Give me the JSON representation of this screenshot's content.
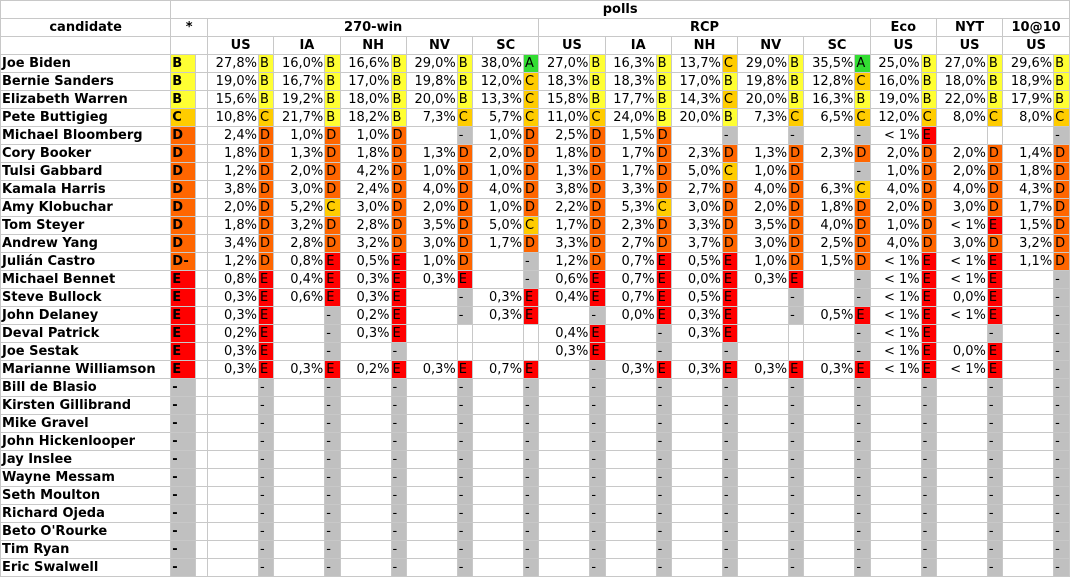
{
  "header": {
    "candidate_label": "candidate",
    "star_label": "*",
    "polls_label": "polls",
    "groups": [
      {
        "label": "270-win",
        "regions": [
          "US",
          "IA",
          "NH",
          "NV",
          "SC"
        ]
      },
      {
        "label": "RCP",
        "regions": [
          "US",
          "IA",
          "NH",
          "NV",
          "SC"
        ]
      },
      {
        "label": "Eco",
        "regions": [
          "US"
        ]
      },
      {
        "label": "NYT",
        "regions": [
          "US"
        ]
      },
      {
        "label": "10@10",
        "regions": [
          "US"
        ]
      }
    ]
  },
  "colors": {
    "A": "#33dd33",
    "B": "#ffff33",
    "C": "#ffcc00",
    "D": "#ff6600",
    "E": "#ff0000",
    "dash": "#c0c0c0"
  },
  "rows": [
    {
      "name": "Joe Biden",
      "grade": "B",
      "polls": [
        [
          "27,8%",
          "B"
        ],
        [
          "16,0%",
          "B"
        ],
        [
          "16,6%",
          "B"
        ],
        [
          "29,0%",
          "B"
        ],
        [
          "38,0%",
          "A"
        ],
        [
          "27,0%",
          "B"
        ],
        [
          "16,3%",
          "B"
        ],
        [
          "13,7%",
          "C"
        ],
        [
          "29,0%",
          "B"
        ],
        [
          "35,5%",
          "A"
        ],
        [
          "25,0%",
          "B"
        ],
        [
          "27,0%",
          "B"
        ],
        [
          "29,6%",
          "B"
        ]
      ]
    },
    {
      "name": "Bernie Sanders",
      "grade": "B",
      "polls": [
        [
          "19,0%",
          "B"
        ],
        [
          "16,7%",
          "B"
        ],
        [
          "17,0%",
          "B"
        ],
        [
          "19,8%",
          "B"
        ],
        [
          "12,0%",
          "C"
        ],
        [
          "18,3%",
          "B"
        ],
        [
          "18,3%",
          "B"
        ],
        [
          "17,0%",
          "B"
        ],
        [
          "19,8%",
          "B"
        ],
        [
          "12,8%",
          "C"
        ],
        [
          "16,0%",
          "B"
        ],
        [
          "18,0%",
          "B"
        ],
        [
          "18,9%",
          "B"
        ]
      ]
    },
    {
      "name": "Elizabeth Warren",
      "grade": "B",
      "polls": [
        [
          "15,6%",
          "B"
        ],
        [
          "19,2%",
          "B"
        ],
        [
          "18,0%",
          "B"
        ],
        [
          "20,0%",
          "B"
        ],
        [
          "13,3%",
          "C"
        ],
        [
          "15,8%",
          "B"
        ],
        [
          "17,7%",
          "B"
        ],
        [
          "14,3%",
          "C"
        ],
        [
          "20,0%",
          "B"
        ],
        [
          "16,3%",
          "B"
        ],
        [
          "19,0%",
          "B"
        ],
        [
          "22,0%",
          "B"
        ],
        [
          "17,9%",
          "B"
        ]
      ]
    },
    {
      "name": "Pete Buttigieg",
      "grade": "C",
      "polls": [
        [
          "10,8%",
          "C"
        ],
        [
          "21,7%",
          "B"
        ],
        [
          "18,2%",
          "B"
        ],
        [
          "7,3%",
          "C"
        ],
        [
          "5,7%",
          "C"
        ],
        [
          "11,0%",
          "C"
        ],
        [
          "24,0%",
          "B"
        ],
        [
          "20,0%",
          "B"
        ],
        [
          "7,3%",
          "C"
        ],
        [
          "6,5%",
          "C"
        ],
        [
          "12,0%",
          "C"
        ],
        [
          "8,0%",
          "C"
        ],
        [
          "8,0%",
          "C"
        ]
      ]
    },
    {
      "name": "Michael Bloomberg",
      "grade": "D",
      "polls": [
        [
          "2,4%",
          "D"
        ],
        [
          "1,0%",
          "D"
        ],
        [
          "1,0%",
          "D"
        ],
        [
          "",
          "-"
        ],
        [
          "1,0%",
          "D"
        ],
        [
          "2,5%",
          "D"
        ],
        [
          "1,5%",
          "D"
        ],
        [
          "",
          "-"
        ],
        [
          "",
          "-"
        ],
        [
          "",
          "-"
        ],
        [
          "< 1%",
          "E"
        ],
        [
          "",
          ""
        ],
        [
          "",
          "-"
        ]
      ]
    },
    {
      "name": "Cory Booker",
      "grade": "D",
      "polls": [
        [
          "1,8%",
          "D"
        ],
        [
          "1,3%",
          "D"
        ],
        [
          "1,8%",
          "D"
        ],
        [
          "1,3%",
          "D"
        ],
        [
          "2,0%",
          "D"
        ],
        [
          "1,8%",
          "D"
        ],
        [
          "1,7%",
          "D"
        ],
        [
          "2,3%",
          "D"
        ],
        [
          "1,3%",
          "D"
        ],
        [
          "2,3%",
          "D"
        ],
        [
          "2,0%",
          "D"
        ],
        [
          "2,0%",
          "D"
        ],
        [
          "1,4%",
          "D"
        ]
      ]
    },
    {
      "name": "Tulsi Gabbard",
      "grade": "D",
      "polls": [
        [
          "1,2%",
          "D"
        ],
        [
          "2,0%",
          "D"
        ],
        [
          "4,2%",
          "D"
        ],
        [
          "1,0%",
          "D"
        ],
        [
          "1,0%",
          "D"
        ],
        [
          "1,3%",
          "D"
        ],
        [
          "1,7%",
          "D"
        ],
        [
          "5,0%",
          "C"
        ],
        [
          "1,0%",
          "D"
        ],
        [
          "",
          "-"
        ],
        [
          "1,0%",
          "D"
        ],
        [
          "2,0%",
          "D"
        ],
        [
          "1,8%",
          "D"
        ]
      ]
    },
    {
      "name": "Kamala Harris",
      "grade": "D",
      "polls": [
        [
          "3,8%",
          "D"
        ],
        [
          "3,0%",
          "D"
        ],
        [
          "2,4%",
          "D"
        ],
        [
          "4,0%",
          "D"
        ],
        [
          "4,0%",
          "D"
        ],
        [
          "3,8%",
          "D"
        ],
        [
          "3,3%",
          "D"
        ],
        [
          "2,7%",
          "D"
        ],
        [
          "4,0%",
          "D"
        ],
        [
          "6,3%",
          "C"
        ],
        [
          "4,0%",
          "D"
        ],
        [
          "4,0%",
          "D"
        ],
        [
          "4,3%",
          "D"
        ]
      ]
    },
    {
      "name": "Amy Klobuchar",
      "grade": "D",
      "polls": [
        [
          "2,0%",
          "D"
        ],
        [
          "5,2%",
          "C"
        ],
        [
          "3,0%",
          "D"
        ],
        [
          "2,0%",
          "D"
        ],
        [
          "1,0%",
          "D"
        ],
        [
          "2,2%",
          "D"
        ],
        [
          "5,3%",
          "C"
        ],
        [
          "3,0%",
          "D"
        ],
        [
          "2,0%",
          "D"
        ],
        [
          "1,8%",
          "D"
        ],
        [
          "2,0%",
          "D"
        ],
        [
          "3,0%",
          "D"
        ],
        [
          "1,7%",
          "D"
        ]
      ]
    },
    {
      "name": "Tom Steyer",
      "grade": "D",
      "polls": [
        [
          "1,8%",
          "D"
        ],
        [
          "3,2%",
          "D"
        ],
        [
          "2,8%",
          "D"
        ],
        [
          "3,5%",
          "D"
        ],
        [
          "5,0%",
          "C"
        ],
        [
          "1,7%",
          "D"
        ],
        [
          "2,3%",
          "D"
        ],
        [
          "3,3%",
          "D"
        ],
        [
          "3,5%",
          "D"
        ],
        [
          "4,0%",
          "D"
        ],
        [
          "1,0%",
          "D"
        ],
        [
          "< 1%",
          "E"
        ],
        [
          "1,5%",
          "D"
        ]
      ]
    },
    {
      "name": "Andrew Yang",
      "grade": "D",
      "polls": [
        [
          "3,4%",
          "D"
        ],
        [
          "2,8%",
          "D"
        ],
        [
          "3,2%",
          "D"
        ],
        [
          "3,0%",
          "D"
        ],
        [
          "1,7%",
          "D"
        ],
        [
          "3,3%",
          "D"
        ],
        [
          "2,7%",
          "D"
        ],
        [
          "3,7%",
          "D"
        ],
        [
          "3,0%",
          "D"
        ],
        [
          "2,5%",
          "D"
        ],
        [
          "4,0%",
          "D"
        ],
        [
          "3,0%",
          "D"
        ],
        [
          "3,2%",
          "D"
        ]
      ]
    },
    {
      "name": "Julián Castro",
      "grade": "D-",
      "polls": [
        [
          "1,2%",
          "D"
        ],
        [
          "0,8%",
          "E"
        ],
        [
          "0,5%",
          "E"
        ],
        [
          "1,0%",
          "D"
        ],
        [
          "",
          "-"
        ],
        [
          "1,2%",
          "D"
        ],
        [
          "0,7%",
          "E"
        ],
        [
          "0,5%",
          "E"
        ],
        [
          "1,0%",
          "D"
        ],
        [
          "1,5%",
          "D"
        ],
        [
          "< 1%",
          "E"
        ],
        [
          "< 1%",
          "E"
        ],
        [
          "1,1%",
          "D"
        ]
      ]
    },
    {
      "name": "Michael Bennet",
      "grade": "E",
      "polls": [
        [
          "0,8%",
          "E"
        ],
        [
          "0,4%",
          "E"
        ],
        [
          "0,3%",
          "E"
        ],
        [
          "0,3%",
          "E"
        ],
        [
          "",
          "-"
        ],
        [
          "0,6%",
          "E"
        ],
        [
          "0,7%",
          "E"
        ],
        [
          "0,0%",
          "E"
        ],
        [
          "0,3%",
          "E"
        ],
        [
          "",
          "-"
        ],
        [
          "< 1%",
          "E"
        ],
        [
          "< 1%",
          "E"
        ],
        [
          "",
          "-"
        ]
      ]
    },
    {
      "name": "Steve Bullock",
      "grade": "E",
      "polls": [
        [
          "0,3%",
          "E"
        ],
        [
          "0,6%",
          "E"
        ],
        [
          "0,3%",
          "E"
        ],
        [
          "",
          "-"
        ],
        [
          "0,3%",
          "E"
        ],
        [
          "0,4%",
          "E"
        ],
        [
          "0,7%",
          "E"
        ],
        [
          "0,5%",
          "E"
        ],
        [
          "",
          "-"
        ],
        [
          "",
          "-"
        ],
        [
          "< 1%",
          "E"
        ],
        [
          "0,0%",
          "E"
        ],
        [
          "",
          "-"
        ]
      ]
    },
    {
      "name": "John Delaney",
      "grade": "E",
      "polls": [
        [
          "0,3%",
          "E"
        ],
        [
          "",
          "-"
        ],
        [
          "0,2%",
          "E"
        ],
        [
          "",
          "-"
        ],
        [
          "0,3%",
          "E"
        ],
        [
          "",
          "-"
        ],
        [
          "0,0%",
          "E"
        ],
        [
          "0,3%",
          "E"
        ],
        [
          "",
          "-"
        ],
        [
          "0,5%",
          "E"
        ],
        [
          "< 1%",
          "E"
        ],
        [
          "< 1%",
          "E"
        ],
        [
          "",
          "-"
        ]
      ]
    },
    {
      "name": "Deval Patrick",
      "grade": "E",
      "polls": [
        [
          "0,2%",
          "E"
        ],
        [
          "",
          "-"
        ],
        [
          "0,3%",
          "E"
        ],
        [
          "",
          ""
        ],
        [
          "",
          ""
        ],
        [
          "0,4%",
          "E"
        ],
        [
          "",
          "-"
        ],
        [
          "0,3%",
          "E"
        ],
        [
          "",
          ""
        ],
        [
          "",
          "-"
        ],
        [
          "< 1%",
          "E"
        ],
        [
          "",
          "-"
        ],
        [
          "",
          "-"
        ]
      ]
    },
    {
      "name": "Joe Sestak",
      "grade": "E",
      "polls": [
        [
          "0,3%",
          "E"
        ],
        [
          "",
          "-"
        ],
        [
          "",
          "-"
        ],
        [
          "",
          ""
        ],
        [
          "",
          ""
        ],
        [
          "0,3%",
          "E"
        ],
        [
          "",
          "-"
        ],
        [
          "",
          "-"
        ],
        [
          "",
          ""
        ],
        [
          "",
          "-"
        ],
        [
          "< 1%",
          "E"
        ],
        [
          "0,0%",
          "E"
        ],
        [
          "",
          "-"
        ]
      ]
    },
    {
      "name": "Marianne Williamson",
      "grade": "E",
      "polls": [
        [
          "0,3%",
          "E"
        ],
        [
          "0,3%",
          "E"
        ],
        [
          "0,2%",
          "E"
        ],
        [
          "0,3%",
          "E"
        ],
        [
          "0,7%",
          "E"
        ],
        [
          "",
          "-"
        ],
        [
          "0,3%",
          "E"
        ],
        [
          "0,3%",
          "E"
        ],
        [
          "0,3%",
          "E"
        ],
        [
          "0,3%",
          "E"
        ],
        [
          "< 1%",
          "E"
        ],
        [
          "< 1%",
          "E"
        ],
        [
          "",
          "-"
        ]
      ]
    },
    {
      "name": "Bill de Blasio",
      "grade": "-",
      "polls": []
    },
    {
      "name": "Kirsten Gillibrand",
      "grade": "-",
      "polls": []
    },
    {
      "name": "Mike Gravel",
      "grade": "-",
      "polls": []
    },
    {
      "name": "John Hickenlooper",
      "grade": "-",
      "polls": []
    },
    {
      "name": "Jay Inslee",
      "grade": "-",
      "polls": []
    },
    {
      "name": "Wayne Messam",
      "grade": "-",
      "polls": []
    },
    {
      "name": "Seth Moulton",
      "grade": "-",
      "polls": []
    },
    {
      "name": "Richard Ojeda",
      "grade": "-",
      "polls": []
    },
    {
      "name": "Beto O'Rourke",
      "grade": "-",
      "polls": []
    },
    {
      "name": "Tim Ryan",
      "grade": "-",
      "polls": []
    },
    {
      "name": "Eric Swalwell",
      "grade": "-",
      "polls": []
    }
  ]
}
